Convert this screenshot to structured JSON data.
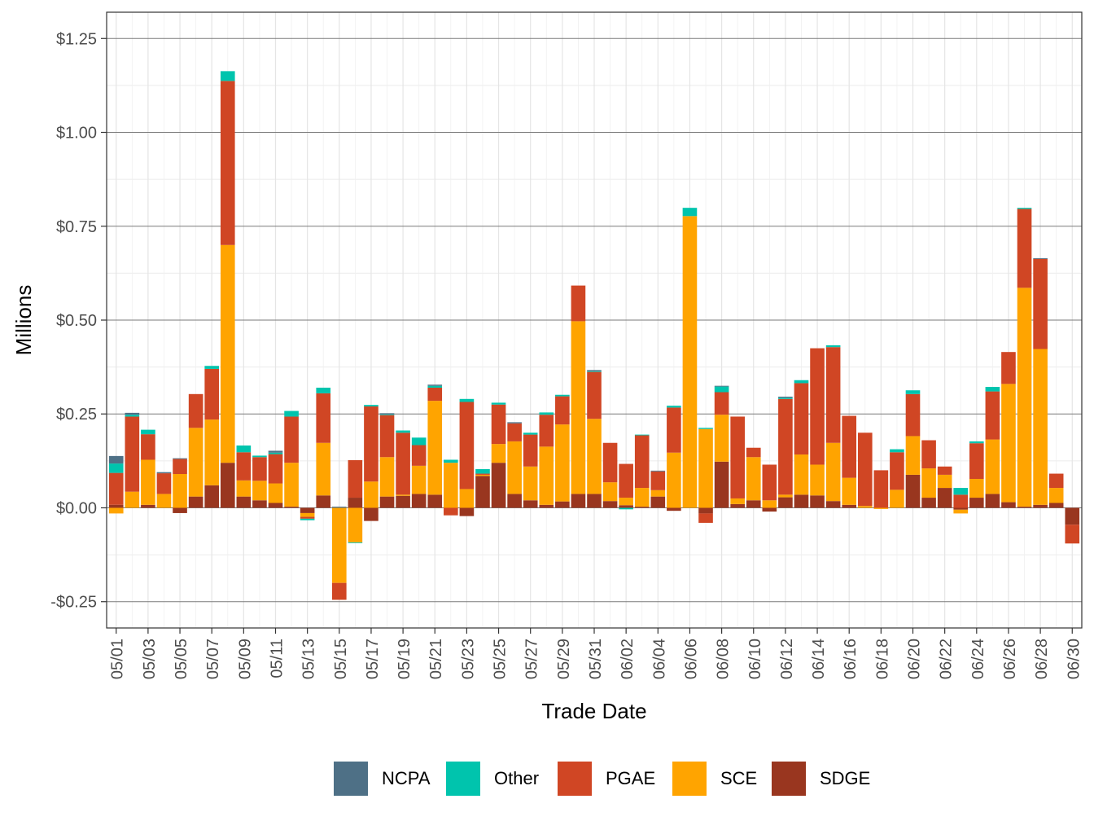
{
  "chart_data": {
    "type": "bar",
    "stacked": true,
    "title": "",
    "xlabel": "Trade Date",
    "ylabel": "Millions",
    "ylim": [
      -0.32,
      1.32
    ],
    "y_ticks": [
      -0.25,
      0,
      0.25,
      0.5,
      0.75,
      1.0,
      1.25
    ],
    "y_tick_labels": [
      "-$0.25",
      "$0.00",
      "$0.25",
      "$0.50",
      "$0.75",
      "$1.00",
      "$1.25"
    ],
    "x_tick_labels": [
      "05/01",
      "05/03",
      "05/05",
      "05/07",
      "05/09",
      "05/11",
      "05/13",
      "05/15",
      "05/17",
      "05/19",
      "05/21",
      "05/23",
      "05/25",
      "05/27",
      "05/29",
      "05/31",
      "06/02",
      "06/04",
      "06/06",
      "06/08",
      "06/10",
      "06/12",
      "06/14",
      "06/16",
      "06/18",
      "06/20",
      "06/22",
      "06/24",
      "06/26",
      "06/28",
      "06/30"
    ],
    "grid": true,
    "legend_position": "bottom",
    "categories": [
      "05/01",
      "05/02",
      "05/03",
      "05/04",
      "05/05",
      "05/06",
      "05/07",
      "05/08",
      "05/09",
      "05/10",
      "05/11",
      "05/12",
      "05/13",
      "05/14",
      "05/15",
      "05/16",
      "05/17",
      "05/18",
      "05/19",
      "05/20",
      "05/21",
      "05/22",
      "05/23",
      "05/24",
      "05/25",
      "05/26",
      "05/27",
      "05/28",
      "05/29",
      "05/30",
      "05/31",
      "06/01",
      "06/02",
      "06/03",
      "06/04",
      "06/05",
      "06/06",
      "06/07",
      "06/08",
      "06/09",
      "06/10",
      "06/11",
      "06/12",
      "06/13",
      "06/14",
      "06/15",
      "06/16",
      "06/17",
      "06/18",
      "06/19",
      "06/20",
      "06/21",
      "06/22",
      "06/23",
      "06/24",
      "06/25",
      "06/26",
      "06/27",
      "06/28",
      "06/29",
      "06/30"
    ],
    "series": [
      {
        "name": "NCPA",
        "color": "#4e7086",
        "values": [
          0.02,
          0.005,
          0,
          0.003,
          0.002,
          0,
          0,
          0,
          0,
          0,
          0.005,
          0,
          0,
          0,
          0.003,
          0,
          0,
          0.003,
          0,
          0,
          0.003,
          0,
          0,
          0,
          0,
          0.003,
          0,
          0,
          0,
          0,
          0.003,
          0,
          0,
          0,
          0.002,
          0,
          0,
          0,
          0.002,
          0,
          0,
          0,
          0.003,
          0,
          0,
          0,
          0,
          0,
          0,
          0,
          0,
          0,
          0,
          0,
          0,
          0,
          0,
          0,
          0.002,
          0,
          0
        ]
      },
      {
        "name": "Other",
        "color": "#00c4ad",
        "values": [
          0.025,
          0.005,
          0.012,
          0,
          0,
          0,
          0.008,
          0.026,
          0.018,
          0.004,
          0.004,
          0.015,
          -0.004,
          0.015,
          0,
          -0.002,
          0.004,
          0.002,
          0.006,
          0.02,
          0.005,
          0.008,
          0.008,
          0.012,
          0.005,
          0,
          0.005,
          0.006,
          0.004,
          0,
          0.002,
          0,
          -0.004,
          0.002,
          0,
          0.005,
          0.022,
          0.003,
          0.015,
          0,
          0,
          0,
          0.003,
          0.008,
          0,
          0.005,
          0,
          0,
          0,
          0.008,
          0.01,
          0,
          0,
          0.018,
          0.005,
          0.012,
          0,
          0.003,
          0,
          0,
          0
        ]
      },
      {
        "name": "PGAE",
        "color": "#d04624",
        "values": [
          0.085,
          0.2,
          0.068,
          0.055,
          0.04,
          0.09,
          0.135,
          0.437,
          0.075,
          0.063,
          0.078,
          0.123,
          -0.005,
          0.132,
          -0.045,
          0.1,
          0.2,
          0.112,
          0.165,
          0.055,
          0.035,
          -0.02,
          0.232,
          0.003,
          0.105,
          0.048,
          0.085,
          0.085,
          0.075,
          0.095,
          0.125,
          0.105,
          0.09,
          0.14,
          0.05,
          0.12,
          0,
          -0.025,
          0.06,
          0.218,
          0.025,
          0.095,
          0.255,
          0.19,
          0.31,
          0.255,
          0.165,
          0.195,
          0.1,
          0.1,
          0.112,
          0.075,
          0.022,
          0.035,
          0.095,
          0.128,
          0.085,
          0.21,
          0.24,
          0.038,
          -0.05
        ]
      },
      {
        "name": "SCE",
        "color": "#ffa400",
        "values": [
          -0.015,
          0.043,
          0.12,
          0.037,
          0.09,
          0.183,
          0.175,
          0.58,
          0.043,
          0.052,
          0.052,
          0.117,
          -0.01,
          0.14,
          -0.2,
          -0.092,
          0.07,
          0.105,
          0.003,
          0.075,
          0.25,
          0.12,
          0.05,
          0.003,
          0.05,
          0.14,
          0.09,
          0.155,
          0.205,
          0.46,
          0.2,
          0.05,
          0.02,
          0.05,
          0.017,
          0.147,
          0.777,
          0.21,
          0.125,
          0.015,
          0.115,
          0.02,
          0.007,
          0.107,
          0.082,
          0.155,
          0.072,
          0.005,
          -0.003,
          0.048,
          0.103,
          0.078,
          0.035,
          -0.01,
          0.05,
          0.145,
          0.315,
          0.583,
          0.415,
          0.04,
          0
        ]
      },
      {
        "name": "SDGE",
        "color": "#99361f",
        "values": [
          0.008,
          0,
          0.008,
          0,
          -0.014,
          0.03,
          0.06,
          0.12,
          0.03,
          0.02,
          0.013,
          0.003,
          -0.014,
          0.033,
          0,
          0.027,
          -0.035,
          0.03,
          0.032,
          0.037,
          0.035,
          0,
          -0.022,
          0.085,
          0.12,
          0.037,
          0.02,
          0.008,
          0.017,
          0.037,
          0.037,
          0.018,
          0.007,
          0.003,
          0.03,
          -0.008,
          0,
          -0.015,
          0.123,
          0.01,
          0.02,
          -0.01,
          0.028,
          0.035,
          0.033,
          0.018,
          0.008,
          0,
          0,
          0,
          0.088,
          0.027,
          0.053,
          -0.005,
          0.027,
          0.037,
          0.015,
          0.003,
          0.008,
          0.013,
          -0.045
        ]
      }
    ]
  }
}
